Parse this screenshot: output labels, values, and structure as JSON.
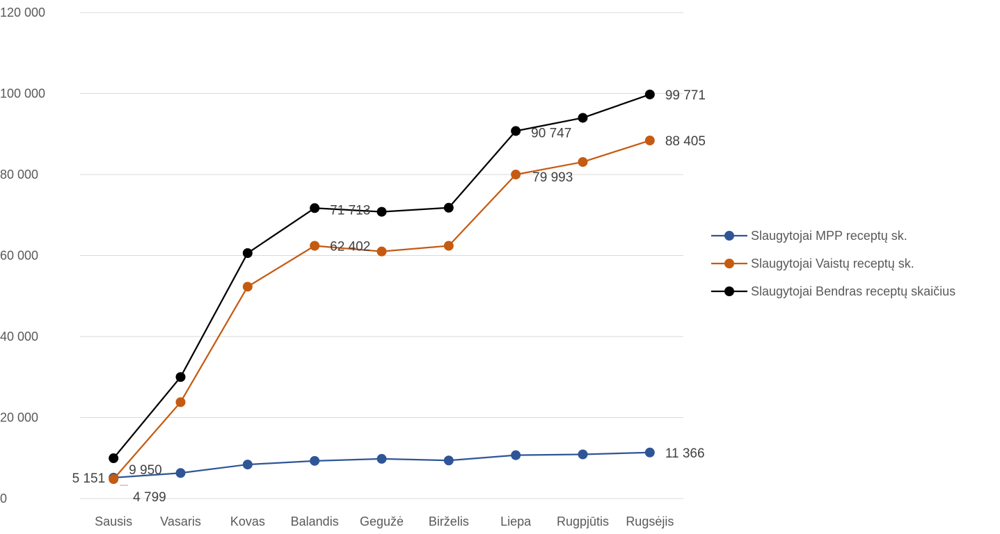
{
  "chart_data": {
    "type": "line",
    "title": "",
    "xlabel": "",
    "ylabel": "",
    "categories": [
      "Sausis",
      "Vasaris",
      "Kovas",
      "Balandis",
      "Gegužė",
      "Birželis",
      "Liepa",
      "Rugpjūtis",
      "Rugsėjis"
    ],
    "ylim": [
      0,
      120000
    ],
    "yticks": [
      0,
      20000,
      40000,
      60000,
      80000,
      100000,
      120000
    ],
    "ytick_labels": [
      "0",
      "20 000",
      "40 000",
      "60 000",
      "80 000",
      "100 000",
      "120 000"
    ],
    "grid": "horizontal",
    "legend_position": "right",
    "series": [
      {
        "name": "Slaugytojai MPP receptų sk.",
        "color": "#2F5597",
        "values": [
          5151,
          6300,
          8400,
          9300,
          9800,
          9400,
          10700,
          10900,
          11366
        ],
        "labels": [
          {
            "index": 0,
            "text": "5 151"
          },
          {
            "index": 8,
            "text": "11 366"
          }
        ]
      },
      {
        "name": "Slaugytojai Vaistų receptų sk.",
        "color": "#C55A11",
        "values": [
          4799,
          23800,
          52300,
          62402,
          61000,
          62400,
          79993,
          83100,
          88405
        ],
        "labels": [
          {
            "index": 0,
            "text": "4 799"
          },
          {
            "index": 3,
            "text": "62 402"
          },
          {
            "index": 6,
            "text": "79 993"
          },
          {
            "index": 8,
            "text": "88 405"
          }
        ]
      },
      {
        "name": "Slaugytojai Bendras receptų skaičius",
        "color": "#000000",
        "values": [
          9950,
          30000,
          60600,
          71713,
          70800,
          71800,
          90747,
          94000,
          99771
        ],
        "labels": [
          {
            "index": 0,
            "text": "9 950"
          },
          {
            "index": 3,
            "text": "71 713"
          },
          {
            "index": 6,
            "text": "90 747"
          },
          {
            "index": 8,
            "text": "99 771"
          }
        ]
      }
    ]
  }
}
